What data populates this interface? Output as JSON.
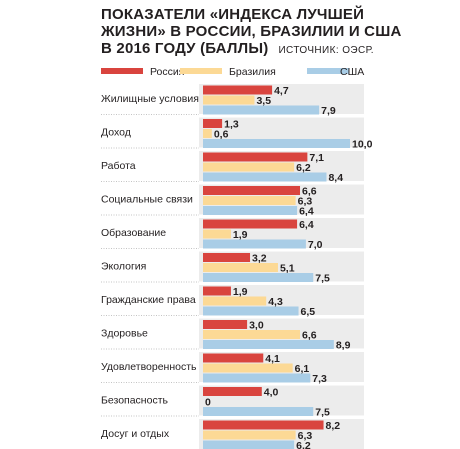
{
  "title": {
    "line1": "ПОКАЗАТЕЛИ «ИНДЕКСА ЛУЧШЕЙ",
    "line2": "ЖИЗНИ» В РОССИИ, БРАЗИЛИИ И США",
    "line3": "В 2016 ГОДУ (БАЛЛЫ)",
    "source": "ИСТОЧНИК: ОЭСР."
  },
  "colors": {
    "Россия": "#d9443e",
    "Бразилия": "#fcd995",
    "США": "#a9cde6",
    "panel": "#ececec"
  },
  "chart_data": {
    "type": "bar",
    "orientation": "horizontal",
    "categories": [
      "Жилищные условия",
      "Доход",
      "Работа",
      "Социальные связи",
      "Образование",
      "Экология",
      "Гражданские права",
      "Здоровье",
      "Удовлетворенность",
      "Безопасность",
      "Досуг и отдых"
    ],
    "series": [
      {
        "name": "Россия",
        "values": [
          4.7,
          1.3,
          7.1,
          6.6,
          6.4,
          3.2,
          1.9,
          3.0,
          4.1,
          4.0,
          8.2
        ],
        "labels": [
          "4,7",
          "1,3",
          "7,1",
          "6,6",
          "6,4",
          "3,2",
          "1,9",
          "3,0",
          "4,1",
          "4,0",
          "8,2"
        ]
      },
      {
        "name": "Бразилия",
        "values": [
          3.5,
          0.6,
          6.2,
          6.3,
          1.9,
          5.1,
          4.3,
          6.6,
          6.1,
          0,
          6.3
        ],
        "labels": [
          "3,5",
          "0,6",
          "6,2",
          "6,3",
          "1,9",
          "5,1",
          "4,3",
          "6,6",
          "6,1",
          "0",
          "6,3"
        ]
      },
      {
        "name": "США",
        "values": [
          7.9,
          10.0,
          8.4,
          6.4,
          7.0,
          7.5,
          6.5,
          8.9,
          7.3,
          7.5,
          6.2
        ],
        "labels": [
          "7,9",
          "10,0",
          "8,4",
          "6,4",
          "7,0",
          "7,5",
          "6,5",
          "8,9",
          "7,3",
          "7,5",
          "6,2"
        ]
      }
    ],
    "xlim": [
      0,
      10
    ],
    "legend": "top",
    "grid": false
  }
}
